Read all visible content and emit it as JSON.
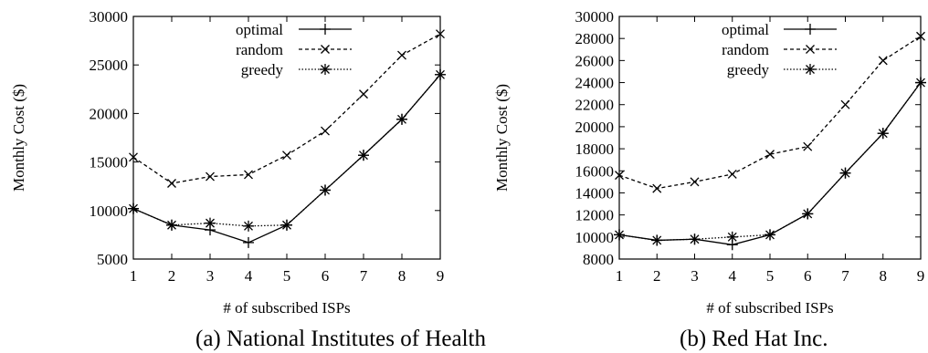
{
  "chart_data": [
    {
      "type": "line",
      "caption": "(a) National Institutes of Health",
      "xlabel": "# of subscribed ISPs",
      "ylabel": "Monthly Cost ($)",
      "x": [
        1,
        2,
        3,
        4,
        5,
        6,
        7,
        8,
        9
      ],
      "xlim": [
        1,
        9
      ],
      "ylim": [
        5000,
        30000
      ],
      "yticks": [
        5000,
        10000,
        15000,
        20000,
        25000,
        30000
      ],
      "legend_position": "top-center",
      "series": [
        {
          "name": "optimal",
          "style": "solid",
          "marker": "plus",
          "values": [
            10200,
            8500,
            8000,
            6700,
            8500,
            12100,
            15700,
            19400,
            24000
          ]
        },
        {
          "name": "random",
          "style": "dashed",
          "marker": "x",
          "values": [
            15500,
            12800,
            13500,
            13700,
            15700,
            18200,
            22000,
            26000,
            28200
          ]
        },
        {
          "name": "greedy",
          "style": "dotted",
          "marker": "star",
          "values": [
            10200,
            8500,
            8700,
            8400,
            8500,
            12100,
            15700,
            19400,
            24000
          ]
        }
      ]
    },
    {
      "type": "line",
      "caption": "(b) Red Hat Inc.",
      "xlabel": "# of subscribed ISPs",
      "ylabel": "Monthly Cost ($)",
      "x": [
        1,
        2,
        3,
        4,
        5,
        6,
        7,
        8,
        9
      ],
      "xlim": [
        1,
        9
      ],
      "ylim": [
        8000,
        30000
      ],
      "yticks": [
        8000,
        10000,
        12000,
        14000,
        16000,
        18000,
        20000,
        22000,
        24000,
        26000,
        28000,
        30000
      ],
      "legend_position": "top-center",
      "series": [
        {
          "name": "optimal",
          "style": "solid",
          "marker": "plus",
          "values": [
            10200,
            9700,
            9800,
            9300,
            10200,
            12100,
            15800,
            19400,
            24000
          ]
        },
        {
          "name": "random",
          "style": "dashed",
          "marker": "x",
          "values": [
            15600,
            14400,
            15000,
            15700,
            17500,
            18200,
            22000,
            26000,
            28200
          ]
        },
        {
          "name": "greedy",
          "style": "dotted",
          "marker": "star",
          "values": [
            10200,
            9700,
            9800,
            10000,
            10200,
            12100,
            15800,
            19400,
            24000
          ]
        }
      ]
    }
  ]
}
